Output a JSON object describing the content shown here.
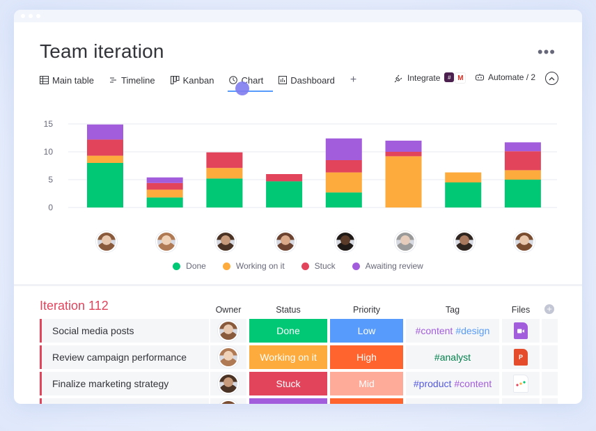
{
  "board": {
    "title": "Team iteration",
    "more_label": "•••"
  },
  "tabs": [
    {
      "label": "Main table",
      "icon": "table-icon"
    },
    {
      "label": "Timeline",
      "icon": "timeline-icon"
    },
    {
      "label": "Kanban",
      "icon": "kanban-icon"
    },
    {
      "label": "Chart",
      "icon": "clock-icon",
      "active": true
    },
    {
      "label": "Dashboard",
      "icon": "dashboard-icon"
    },
    {
      "label": "+",
      "icon": "plus-icon"
    }
  ],
  "toolbar": {
    "integrate_label": "Integrate",
    "automate_label": "Automate / 2"
  },
  "chart_data": {
    "type": "bar",
    "stacked": true,
    "yticks": [
      0,
      5,
      10,
      15
    ],
    "ylim": [
      0,
      15
    ],
    "categories": [
      "owner-1",
      "owner-2",
      "owner-3",
      "owner-4",
      "owner-5",
      "owner-6",
      "owner-7",
      "owner-8"
    ],
    "series": [
      {
        "name": "Done",
        "color": "#00c875",
        "values": [
          8,
          1.8,
          5.2,
          4.7,
          2.7,
          0,
          4.5,
          5
        ]
      },
      {
        "name": "Working on it",
        "color": "#fdab3d",
        "values": [
          1.3,
          1.4,
          1.9,
          0,
          3.6,
          9.2,
          1.8,
          1.7
        ]
      },
      {
        "name": "Stuck",
        "color": "#e2445c",
        "values": [
          2.9,
          1.2,
          2.8,
          1.3,
          2.2,
          0.8,
          0,
          3.4
        ]
      },
      {
        "name": "Awaiting review",
        "color": "#a25ddc",
        "values": [
          2.7,
          1.0,
          0,
          0,
          3.9,
          2.0,
          0,
          1.6
        ]
      }
    ]
  },
  "legend": [
    {
      "label": "Done",
      "color": "#00c875"
    },
    {
      "label": "Working on it",
      "color": "#fdab3d"
    },
    {
      "label": "Stuck",
      "color": "#e2445c"
    },
    {
      "label": "Awaiting review",
      "color": "#a25ddc"
    }
  ],
  "group": {
    "title": "Iteration 112",
    "columns": {
      "owner": "Owner",
      "status": "Status",
      "priority": "Priority",
      "tag": "Tag",
      "files": "Files"
    },
    "rows": [
      {
        "name": "Social media posts",
        "status": "Done",
        "status_color": "#00c875",
        "priority": "Low",
        "priority_color": "#579bfc",
        "tags": [
          "#content",
          "#design"
        ],
        "tag_colors": [
          "#a25ddc",
          "#579bfc"
        ],
        "file_label": "",
        "file_color": "#a25ddc",
        "file_icon": "video-file-icon"
      },
      {
        "name": "Review campaign performance",
        "status": "Working on it",
        "status_color": "#fdab3d",
        "priority": "High",
        "priority_color": "#ff642e",
        "tags": [
          "#analyst"
        ],
        "tag_colors": [
          "#037f4c"
        ],
        "file_label": "P",
        "file_color": "#e44c2c",
        "file_icon": "powerpoint-file-icon"
      },
      {
        "name": "Finalize marketing strategy",
        "status": "Stuck",
        "status_color": "#e2445c",
        "priority": "Mid",
        "priority_color": "#ffab9a",
        "tags": [
          "#product",
          "#content"
        ],
        "tag_colors": [
          "#5559df",
          "#a25ddc"
        ],
        "file_label": "",
        "file_color": "#ffffff",
        "file_icon": "monday-logo-icon"
      },
      {
        "name": "",
        "status": "",
        "status_color": "#a25ddc",
        "priority": "",
        "priority_color": "#ff642e",
        "tags": [],
        "tag_colors": [],
        "file_label": "",
        "file_color": "#f5f6f8",
        "file_icon": ""
      }
    ]
  }
}
